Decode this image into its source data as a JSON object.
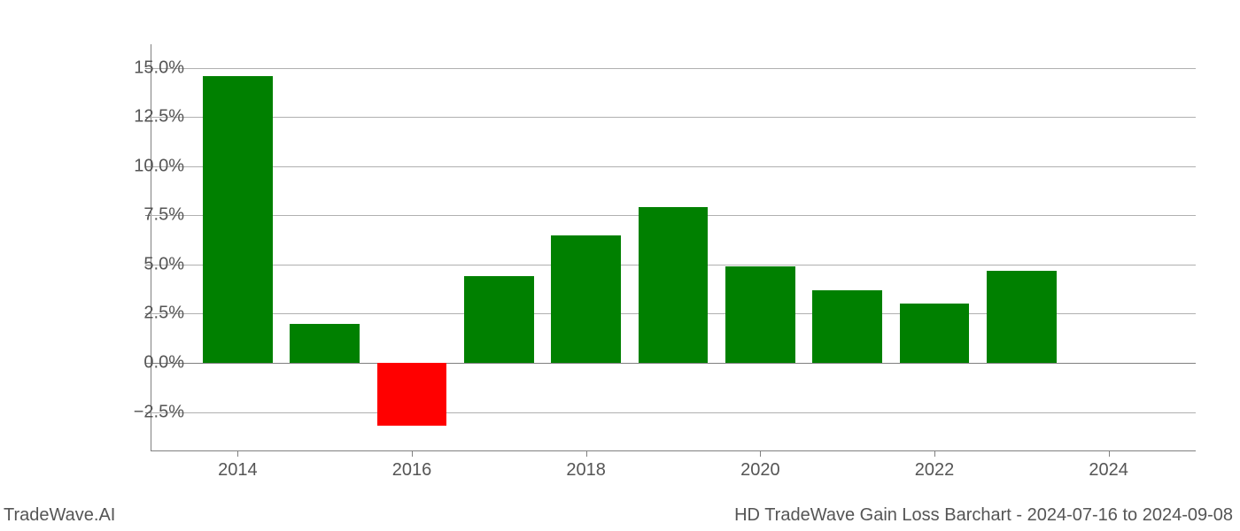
{
  "chart": {
    "type": "bar",
    "years": [
      2014,
      2015,
      2016,
      2017,
      2018,
      2019,
      2020,
      2021,
      2022,
      2023
    ],
    "values": [
      14.6,
      2.0,
      -3.2,
      4.4,
      6.5,
      7.9,
      4.9,
      3.7,
      3.0,
      4.7
    ],
    "positive_color": "#008000",
    "negative_color": "#ff0000",
    "bar_width": 0.8,
    "x_domain_min": 2013,
    "x_domain_max": 2025,
    "y_domain_min": -4.5,
    "y_domain_max": 16.2,
    "y_ticks": [
      -2.5,
      0.0,
      2.5,
      5.0,
      7.5,
      10.0,
      12.5,
      15.0
    ],
    "y_tick_labels": [
      "−2.5%",
      "0.0%",
      "2.5%",
      "5.0%",
      "7.5%",
      "10.0%",
      "12.5%",
      "15.0%"
    ],
    "x_ticks": [
      2014,
      2016,
      2018,
      2020,
      2022,
      2024
    ],
    "x_tick_labels": [
      "2014",
      "2016",
      "2018",
      "2020",
      "2022",
      "2024"
    ],
    "grid_color": "#b0b0b0",
    "spine_color": "#808080",
    "background_color": "#ffffff",
    "tick_label_color": "#555555",
    "tick_fontsize": 20
  },
  "footer": {
    "left": "TradeWave.AI",
    "right": "HD TradeWave Gain Loss Barchart - 2024-07-16 to 2024-09-08",
    "fontsize": 20,
    "color": "#555555"
  }
}
